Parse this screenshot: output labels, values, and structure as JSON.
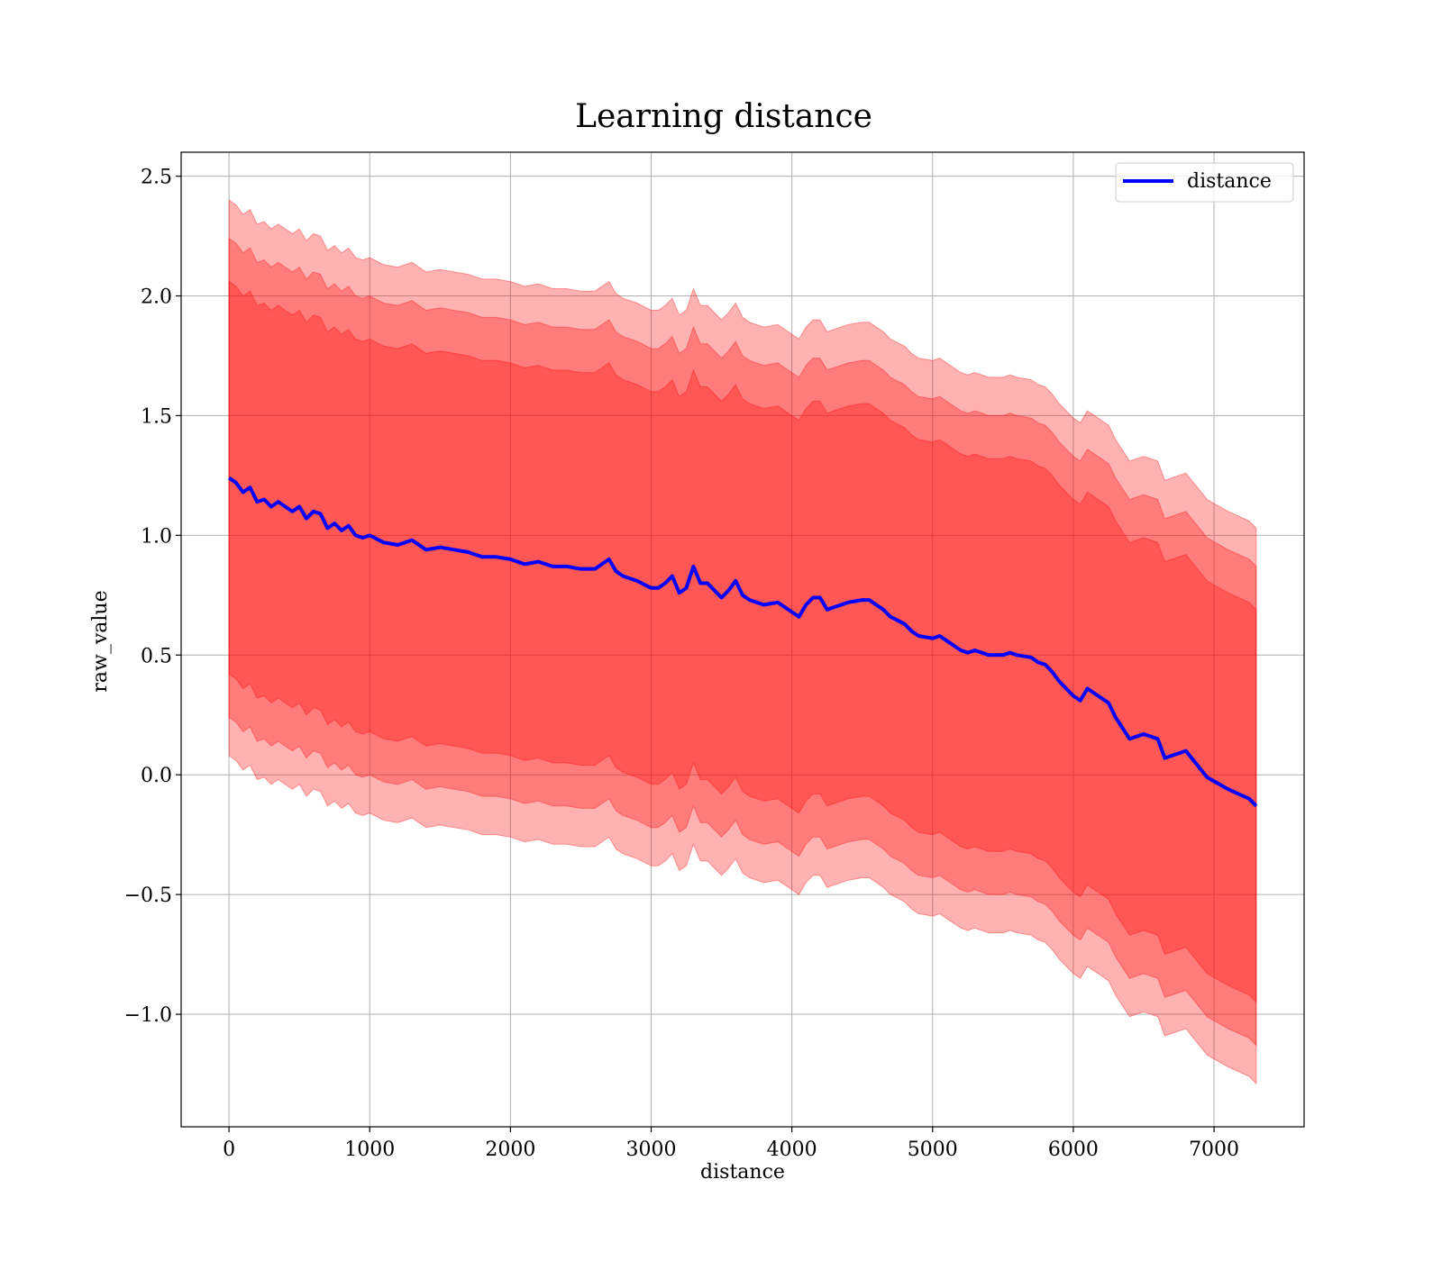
{
  "chart_data": {
    "type": "line",
    "title": "Learning distance",
    "xlabel": "distance",
    "ylabel": "raw_value",
    "xlim": [
      -340,
      7640
    ],
    "ylim": [
      -1.47,
      2.6
    ],
    "x_ticks": [
      0,
      1000,
      2000,
      3000,
      4000,
      5000,
      6000,
      7000
    ],
    "x_tick_labels": [
      "0",
      "1000",
      "2000",
      "3000",
      "4000",
      "5000",
      "6000",
      "7000"
    ],
    "y_ticks": [
      2.5,
      2.0,
      1.5,
      1.0,
      0.5,
      0.0,
      -0.5,
      -1.0
    ],
    "y_tick_labels": [
      "2.5",
      "2.0",
      "1.5",
      "1.0",
      "0.5",
      "0.0",
      "−0.5",
      "−1.0"
    ],
    "grid": true,
    "legend": {
      "position": "top-right",
      "entries": [
        "distance"
      ]
    },
    "colors": {
      "line": "#0000ff",
      "band": "#ff0000",
      "band_alpha": 0.3
    },
    "band_half_widths": [
      0.82,
      1.0,
      1.16
    ],
    "series": [
      {
        "name": "distance",
        "x": [
          0,
          50,
          100,
          150,
          200,
          250,
          300,
          350,
          400,
          450,
          500,
          550,
          600,
          650,
          700,
          750,
          800,
          850,
          900,
          950,
          1000,
          1100,
          1200,
          1300,
          1400,
          1500,
          1600,
          1700,
          1800,
          1900,
          2000,
          2100,
          2200,
          2300,
          2400,
          2500,
          2600,
          2700,
          2750,
          2800,
          2900,
          3000,
          3050,
          3100,
          3150,
          3200,
          3250,
          3300,
          3350,
          3400,
          3500,
          3550,
          3600,
          3650,
          3700,
          3800,
          3900,
          4000,
          4050,
          4100,
          4150,
          4200,
          4250,
          4300,
          4400,
          4500,
          4550,
          4600,
          4650,
          4700,
          4800,
          4850,
          4900,
          5000,
          5050,
          5100,
          5200,
          5250,
          5300,
          5400,
          5500,
          5550,
          5600,
          5700,
          5750,
          5800,
          5850,
          5900,
          6000,
          6050,
          6100,
          6150,
          6250,
          6300,
          6400,
          6500,
          6600,
          6650,
          6800,
          6950,
          7100,
          7250,
          7300
        ],
        "y": [
          1.24,
          1.22,
          1.18,
          1.2,
          1.14,
          1.15,
          1.12,
          1.14,
          1.12,
          1.1,
          1.12,
          1.07,
          1.1,
          1.09,
          1.03,
          1.05,
          1.02,
          1.04,
          1.0,
          0.99,
          1.0,
          0.97,
          0.96,
          0.98,
          0.94,
          0.95,
          0.94,
          0.93,
          0.91,
          0.91,
          0.9,
          0.88,
          0.89,
          0.87,
          0.87,
          0.86,
          0.86,
          0.9,
          0.85,
          0.83,
          0.81,
          0.78,
          0.78,
          0.8,
          0.83,
          0.76,
          0.78,
          0.87,
          0.8,
          0.8,
          0.74,
          0.77,
          0.81,
          0.75,
          0.73,
          0.71,
          0.72,
          0.68,
          0.66,
          0.71,
          0.74,
          0.74,
          0.69,
          0.7,
          0.72,
          0.73,
          0.73,
          0.71,
          0.69,
          0.66,
          0.63,
          0.6,
          0.58,
          0.57,
          0.58,
          0.56,
          0.52,
          0.51,
          0.52,
          0.5,
          0.5,
          0.51,
          0.5,
          0.49,
          0.47,
          0.46,
          0.43,
          0.39,
          0.33,
          0.31,
          0.36,
          0.34,
          0.3,
          0.24,
          0.15,
          0.17,
          0.15,
          0.07,
          0.1,
          -0.01,
          -0.06,
          -0.1,
          -0.13
        ]
      }
    ]
  }
}
